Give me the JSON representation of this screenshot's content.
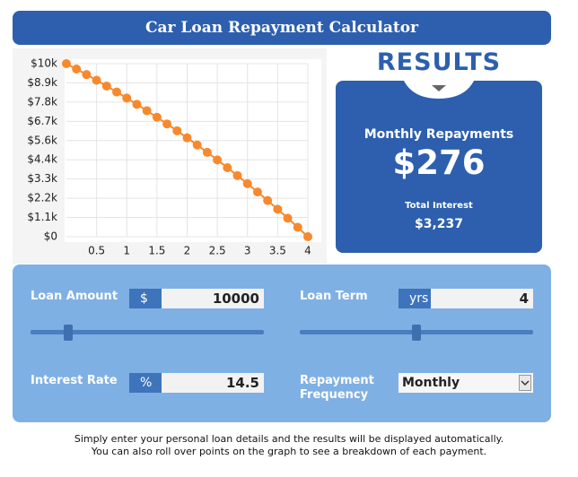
{
  "header": {
    "title": "Car Loan Repayment Calculator"
  },
  "chart_data": {
    "type": "line",
    "color": "#f7892c",
    "grid": true,
    "x": [
      0,
      0.1667,
      0.3333,
      0.5,
      0.6667,
      0.8333,
      1,
      1.1667,
      1.3333,
      1.5,
      1.6667,
      1.8333,
      2,
      2.1667,
      2.3333,
      2.5,
      2.6667,
      2.8333,
      3,
      3.1667,
      3.3333,
      3.5,
      3.6667,
      3.8333,
      4
    ],
    "values": [
      10000,
      9688,
      9369,
      9042,
      8707,
      8364,
      8012,
      7652,
      7283,
      6905,
      6518,
      6122,
      5716,
      5300,
      4874,
      4438,
      3991,
      3533,
      3064,
      2583,
      2091,
      1587,
      1071,
      542,
      0
    ],
    "xlim": [
      0,
      4
    ],
    "xticks": [
      0.5,
      1,
      1.5,
      2,
      2.5,
      3,
      3.5,
      4
    ],
    "ylim": [
      0,
      10000
    ],
    "yticks": [
      {
        "value": 0,
        "label": "$0"
      },
      {
        "value": 1111,
        "label": "$1.1k"
      },
      {
        "value": 2222,
        "label": "$2.2k"
      },
      {
        "value": 3333,
        "label": "$3.3k"
      },
      {
        "value": 4444,
        "label": "$4.4k"
      },
      {
        "value": 5556,
        "label": "$5.6k"
      },
      {
        "value": 6667,
        "label": "$6.7k"
      },
      {
        "value": 7778,
        "label": "$7.8k"
      },
      {
        "value": 8889,
        "label": "$8.9k"
      },
      {
        "value": 10000,
        "label": "$10k"
      }
    ]
  },
  "results": {
    "heading": "RESULTS",
    "monthly_label": "Monthly Repayments",
    "monthly_value": "$276",
    "interest_label": "Total Interest",
    "interest_value": "$3,237"
  },
  "form": {
    "loan_amount": {
      "label": "Loan Amount",
      "unit": "$",
      "value": "10000"
    },
    "loan_term": {
      "label": "Loan Term",
      "unit": "yrs",
      "value": "4"
    },
    "interest_rate": {
      "label": "Interest Rate",
      "unit": "%",
      "value": "14.5"
    },
    "frequency": {
      "label": "Repayment Frequency",
      "value": "Monthly"
    }
  },
  "footer": {
    "lines": [
      "Simply enter your personal loan details and the results will be displayed automatically.",
      "You can also roll over points on the graph to see a breakdown of each payment."
    ]
  }
}
